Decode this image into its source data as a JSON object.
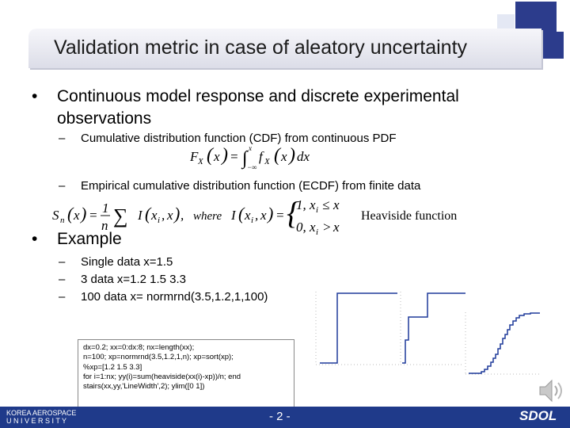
{
  "title": "Validation metric in case of aleatory uncertainty",
  "bullet1": "Continuous model response and discrete experimental observations",
  "sub_cdf": "Cumulative distribution function (CDF) from continuous PDF",
  "sub_ecdf": "Empirical cumulative distribution function  (ECDF) from finite data",
  "heaviside_label": "Heaviside function",
  "bullet2": "Example",
  "example_items": [
    "Single data x=1.5",
    "3 data x=1.2 1.5 3.3",
    "100 data x= normrnd(3.5,1.2,1,100)"
  ],
  "code_lines": [
    "dx=0.2; xx=0:dx:8; nx=length(xx);",
    "n=100; xp=normrnd(3.5,1.2,1,n); xp=sort(xp);",
    "%xp=[1.2 1.5 3.3]",
    "for i=1:nx; yy(i)=sum(heaviside(xx(i)-xp))/n; end",
    "stairs(xx,yy,'LineWidth',2); ylim([0 1])"
  ],
  "page_number": "- 2 -",
  "university": [
    "KOREA AEROSPACE",
    "U N I V E R S I T Y"
  ],
  "lab_logo": "SDOL",
  "colors": {
    "footer": "#1f3a8a",
    "plot_line": "#1f3a9a",
    "accent_square": "#2c3c8c"
  }
}
